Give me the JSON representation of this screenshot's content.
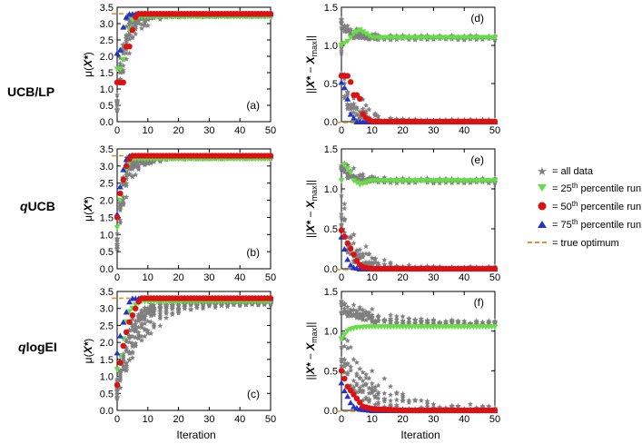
{
  "chart_data": {
    "type": "scatter",
    "row_labels": [
      "UCB/LP",
      "qUCB",
      "qlogEI"
    ],
    "xlabel": "Iteration",
    "ylabel_left": "μ(X*)",
    "ylabel_right": "||X* − X_max||",
    "xlim": [
      0,
      50
    ],
    "ylim_left": [
      0.0,
      3.5
    ],
    "ylim_right": [
      0.0,
      1.5
    ],
    "xticks": [
      0,
      10,
      20,
      30,
      40,
      50
    ],
    "yticks_left": [
      0.0,
      0.5,
      1.0,
      1.5,
      2.0,
      2.5,
      3.0,
      3.5
    ],
    "yticks_right": [
      0.0,
      0.5,
      1.0,
      1.5
    ],
    "true_optimum_left": 3.3,
    "true_optimum_right": 0.0,
    "colors": {
      "all_data": "#7f7f7f",
      "p25": "#66dd44",
      "p50": "#dd1111",
      "p75": "#2233cc",
      "optimum": "#d39a2a"
    },
    "legend": {
      "all_data": "= all data",
      "p25_pre": "= 25",
      "p25_sup": "th",
      "p25_post": " percentile run",
      "p50_pre": "= 50",
      "p50_sup": "th",
      "p50_post": " percentile run",
      "p75_pre": "= 75",
      "p75_sup": "th",
      "p75_post": " percentile run",
      "optimum": "= true optimum"
    },
    "panels": [
      {
        "id": "a",
        "label": "(a)",
        "side": "left",
        "row": 0,
        "p25": [
          [
            0,
            1.6
          ],
          [
            1,
            1.6
          ],
          [
            2,
            1.9
          ],
          [
            3,
            2.3
          ],
          [
            4,
            2.8
          ],
          [
            5,
            3.1
          ],
          [
            6,
            3.2
          ],
          [
            8,
            3.2
          ],
          [
            10,
            3.2
          ],
          [
            15,
            3.2
          ],
          [
            20,
            3.2
          ],
          [
            30,
            3.2
          ],
          [
            40,
            3.2
          ],
          [
            50,
            3.2
          ]
        ],
        "p50": [
          [
            0,
            1.2
          ],
          [
            1,
            1.2
          ],
          [
            2,
            1.2
          ],
          [
            3,
            2.3
          ],
          [
            4,
            2.3
          ],
          [
            5,
            2.8
          ],
          [
            6,
            3.2
          ],
          [
            7,
            3.3
          ],
          [
            10,
            3.3
          ],
          [
            20,
            3.3
          ],
          [
            30,
            3.3
          ],
          [
            40,
            3.3
          ],
          [
            50,
            3.3
          ]
        ],
        "p75": [
          [
            0,
            2.1
          ],
          [
            1,
            2.2
          ],
          [
            2,
            2.9
          ],
          [
            3,
            3.2
          ],
          [
            4,
            3.3
          ],
          [
            6,
            3.3
          ],
          [
            10,
            3.3
          ],
          [
            20,
            3.3
          ],
          [
            30,
            3.3
          ],
          [
            40,
            3.3
          ],
          [
            50,
            3.3
          ]
        ],
        "cloud": {
          "start": 0.5,
          "end": 3.25,
          "rate": 0.45,
          "spread": 0.6
        }
      },
      {
        "id": "b",
        "label": "(b)",
        "side": "left",
        "row": 1,
        "p25": [
          [
            0,
            1.2
          ],
          [
            1,
            2.0
          ],
          [
            2,
            2.6
          ],
          [
            3,
            2.9
          ],
          [
            4,
            3.1
          ],
          [
            5,
            3.2
          ],
          [
            7,
            3.2
          ],
          [
            10,
            3.2
          ],
          [
            20,
            3.2
          ],
          [
            30,
            3.2
          ],
          [
            40,
            3.2
          ],
          [
            50,
            3.2
          ]
        ],
        "p50": [
          [
            0,
            1.5
          ],
          [
            1,
            2.2
          ],
          [
            2,
            2.6
          ],
          [
            3,
            3.0
          ],
          [
            4,
            3.2
          ],
          [
            5,
            3.3
          ],
          [
            7,
            3.3
          ],
          [
            10,
            3.3
          ],
          [
            20,
            3.3
          ],
          [
            30,
            3.3
          ],
          [
            40,
            3.3
          ],
          [
            50,
            3.3
          ]
        ],
        "p75": [
          [
            0,
            1.6
          ],
          [
            1,
            2.4
          ],
          [
            2,
            2.9
          ],
          [
            3,
            3.2
          ],
          [
            4,
            3.3
          ],
          [
            6,
            3.3
          ],
          [
            10,
            3.3
          ],
          [
            20,
            3.3
          ],
          [
            30,
            3.3
          ],
          [
            40,
            3.3
          ],
          [
            50,
            3.3
          ]
        ],
        "cloud": {
          "start": 0.8,
          "end": 3.25,
          "rate": 0.55,
          "spread": 0.5
        }
      },
      {
        "id": "c",
        "label": "(c)",
        "side": "left",
        "row": 2,
        "p25": [
          [
            0,
            1.2
          ],
          [
            1,
            1.6
          ],
          [
            2,
            2.1
          ],
          [
            3,
            2.6
          ],
          [
            4,
            2.9
          ],
          [
            5,
            3.0
          ],
          [
            6,
            3.1
          ],
          [
            8,
            3.2
          ],
          [
            10,
            3.2
          ],
          [
            20,
            3.2
          ],
          [
            30,
            3.2
          ],
          [
            40,
            3.2
          ],
          [
            50,
            3.2
          ]
        ],
        "p50": [
          [
            0,
            0.75
          ],
          [
            1,
            1.4
          ],
          [
            2,
            1.9
          ],
          [
            3,
            2.3
          ],
          [
            4,
            2.6
          ],
          [
            5,
            2.8
          ],
          [
            6,
            3.0
          ],
          [
            7,
            3.2
          ],
          [
            8,
            3.3
          ],
          [
            10,
            3.3
          ],
          [
            20,
            3.3
          ],
          [
            30,
            3.3
          ],
          [
            40,
            3.3
          ],
          [
            50,
            3.3
          ]
        ],
        "p75": [
          [
            0,
            1.7
          ],
          [
            1,
            2.2
          ],
          [
            2,
            2.6
          ],
          [
            3,
            2.9
          ],
          [
            4,
            3.2
          ],
          [
            5,
            3.3
          ],
          [
            7,
            3.3
          ],
          [
            10,
            3.3
          ],
          [
            20,
            3.3
          ],
          [
            30,
            3.3
          ],
          [
            40,
            3.3
          ],
          [
            50,
            3.3
          ]
        ],
        "cloud": {
          "start": 0.6,
          "end": 3.15,
          "rate": 0.2,
          "spread": 0.6
        }
      },
      {
        "id": "d",
        "label": "(d)",
        "side": "right",
        "row": 0,
        "p25": [
          [
            0,
            1.0
          ],
          [
            2,
            1.05
          ],
          [
            4,
            1.15
          ],
          [
            6,
            1.2
          ],
          [
            8,
            1.15
          ],
          [
            10,
            1.1
          ],
          [
            15,
            1.1
          ],
          [
            20,
            1.1
          ],
          [
            30,
            1.1
          ],
          [
            40,
            1.1
          ],
          [
            50,
            1.1
          ]
        ],
        "p50": [
          [
            0,
            0.6
          ],
          [
            1,
            0.6
          ],
          [
            2,
            0.6
          ],
          [
            3,
            0.52
          ],
          [
            4,
            0.35
          ],
          [
            5,
            0.35
          ],
          [
            6,
            0.3
          ],
          [
            7,
            0.1
          ],
          [
            8,
            0.05
          ],
          [
            10,
            0.0
          ],
          [
            20,
            0.0
          ],
          [
            30,
            0.0
          ],
          [
            40,
            0.0
          ],
          [
            50,
            0.0
          ]
        ],
        "p75": [
          [
            0,
            0.52
          ],
          [
            1,
            0.45
          ],
          [
            2,
            0.3
          ],
          [
            3,
            0.1
          ],
          [
            4,
            0.05
          ],
          [
            5,
            0.0
          ],
          [
            8,
            0.0
          ],
          [
            20,
            0.0
          ],
          [
            30,
            0.0
          ],
          [
            40,
            0.0
          ],
          [
            50,
            0.0
          ]
        ],
        "cloud": {
          "low": 0.0,
          "high": 1.1,
          "rate": 0.35,
          "spread": 0.35
        }
      },
      {
        "id": "e",
        "label": "(e)",
        "side": "right",
        "row": 1,
        "p25": [
          [
            0,
            1.1
          ],
          [
            1,
            1.3
          ],
          [
            2,
            1.25
          ],
          [
            3,
            1.2
          ],
          [
            4,
            1.1
          ],
          [
            6,
            1.05
          ],
          [
            10,
            1.1
          ],
          [
            20,
            1.1
          ],
          [
            30,
            1.1
          ],
          [
            40,
            1.1
          ],
          [
            50,
            1.1
          ]
        ],
        "p50": [
          [
            0,
            0.48
          ],
          [
            1,
            0.4
          ],
          [
            2,
            0.32
          ],
          [
            3,
            0.25
          ],
          [
            4,
            0.18
          ],
          [
            5,
            0.1
          ],
          [
            6,
            0.05
          ],
          [
            7,
            0.02
          ],
          [
            10,
            0.0
          ],
          [
            20,
            0.0
          ],
          [
            30,
            0.0
          ],
          [
            40,
            0.0
          ],
          [
            50,
            0.0
          ]
        ],
        "p75": [
          [
            0,
            0.4
          ],
          [
            1,
            0.25
          ],
          [
            2,
            0.12
          ],
          [
            3,
            0.05
          ],
          [
            4,
            0.02
          ],
          [
            6,
            0.0
          ],
          [
            10,
            0.0
          ],
          [
            20,
            0.0
          ],
          [
            30,
            0.0
          ],
          [
            40,
            0.0
          ],
          [
            50,
            0.0
          ]
        ],
        "cloud": {
          "low": 0.0,
          "high": 1.1,
          "rate": 0.3,
          "spread": 0.3
        }
      },
      {
        "id": "f",
        "label": "(f)",
        "side": "right",
        "row": 2,
        "p25": [
          [
            0,
            0.9
          ],
          [
            1,
            0.95
          ],
          [
            2,
            1.0
          ],
          [
            3,
            1.02
          ],
          [
            5,
            1.04
          ],
          [
            8,
            1.05
          ],
          [
            10,
            1.05
          ],
          [
            20,
            1.05
          ],
          [
            30,
            1.05
          ],
          [
            40,
            1.05
          ],
          [
            50,
            1.05
          ]
        ],
        "p50": [
          [
            0,
            0.5
          ],
          [
            1,
            0.4
          ],
          [
            2,
            0.3
          ],
          [
            3,
            0.25
          ],
          [
            4,
            0.2
          ],
          [
            5,
            0.15
          ],
          [
            6,
            0.1
          ],
          [
            7,
            0.05
          ],
          [
            10,
            0.02
          ],
          [
            20,
            0.0
          ],
          [
            30,
            0.0
          ],
          [
            40,
            0.0
          ],
          [
            50,
            0.0
          ]
        ],
        "p75": [
          [
            0,
            0.35
          ],
          [
            1,
            0.25
          ],
          [
            2,
            0.18
          ],
          [
            3,
            0.1
          ],
          [
            4,
            0.05
          ],
          [
            6,
            0.02
          ],
          [
            10,
            0.0
          ],
          [
            20,
            0.0
          ],
          [
            30,
            0.0
          ],
          [
            40,
            0.0
          ],
          [
            50,
            0.0
          ]
        ],
        "cloud": {
          "low": 0.0,
          "high": 1.1,
          "rate": 0.12,
          "spread": 0.3
        }
      }
    ]
  }
}
